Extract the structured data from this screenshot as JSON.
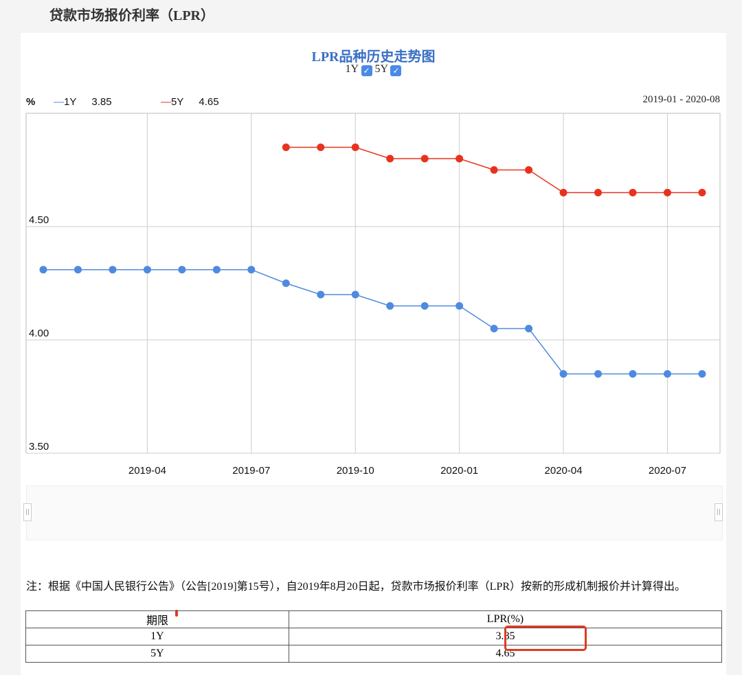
{
  "page_title": "贷款市场报价利率（LPR）",
  "chart_data": {
    "type": "line",
    "title": "LPR品种历史走势图",
    "toggles": [
      {
        "label": "1Y",
        "checked": true
      },
      {
        "label": "5Y",
        "checked": true
      }
    ],
    "ylabel": "%",
    "date_range": "2019-01 - 2020-08",
    "ylim": [
      3.5,
      5.0
    ],
    "yticks": [
      "3.50",
      "4.00",
      "4.50"
    ],
    "xticks": [
      "2019-04",
      "2019-07",
      "2019-10",
      "2020-01",
      "2020-04",
      "2020-07"
    ],
    "x": [
      "2019-01",
      "2019-02",
      "2019-03",
      "2019-04",
      "2019-05",
      "2019-06",
      "2019-07",
      "2019-08",
      "2019-09",
      "2019-10",
      "2019-11",
      "2019-12",
      "2020-01",
      "2020-02",
      "2020-03",
      "2020-04",
      "2020-05",
      "2020-06",
      "2020-07",
      "2020-08"
    ],
    "series": [
      {
        "name": "1Y",
        "latest": "3.85",
        "color": "#4f8ae0",
        "values": [
          4.31,
          4.31,
          4.31,
          4.31,
          4.31,
          4.31,
          4.31,
          4.25,
          4.2,
          4.2,
          4.15,
          4.15,
          4.15,
          4.05,
          4.05,
          3.85,
          3.85,
          3.85,
          3.85,
          3.85
        ]
      },
      {
        "name": "5Y",
        "latest": "4.65",
        "color": "#e8321f",
        "values": [
          null,
          null,
          null,
          null,
          null,
          null,
          null,
          4.85,
          4.85,
          4.85,
          4.8,
          4.8,
          4.8,
          4.75,
          4.75,
          4.65,
          4.65,
          4.65,
          4.65,
          4.65
        ]
      }
    ],
    "grid": true
  },
  "note": "注：根据《中国人民银行公告》（公告[2019]第15号），自2019年8月20日起，贷款市场报价利率（LPR）按新的形成机制报价并计算得出。",
  "table": {
    "headers": [
      "期限",
      "LPR(%)"
    ],
    "rows": [
      [
        "1Y",
        "3.85"
      ],
      [
        "5Y",
        "4.65"
      ]
    ]
  }
}
